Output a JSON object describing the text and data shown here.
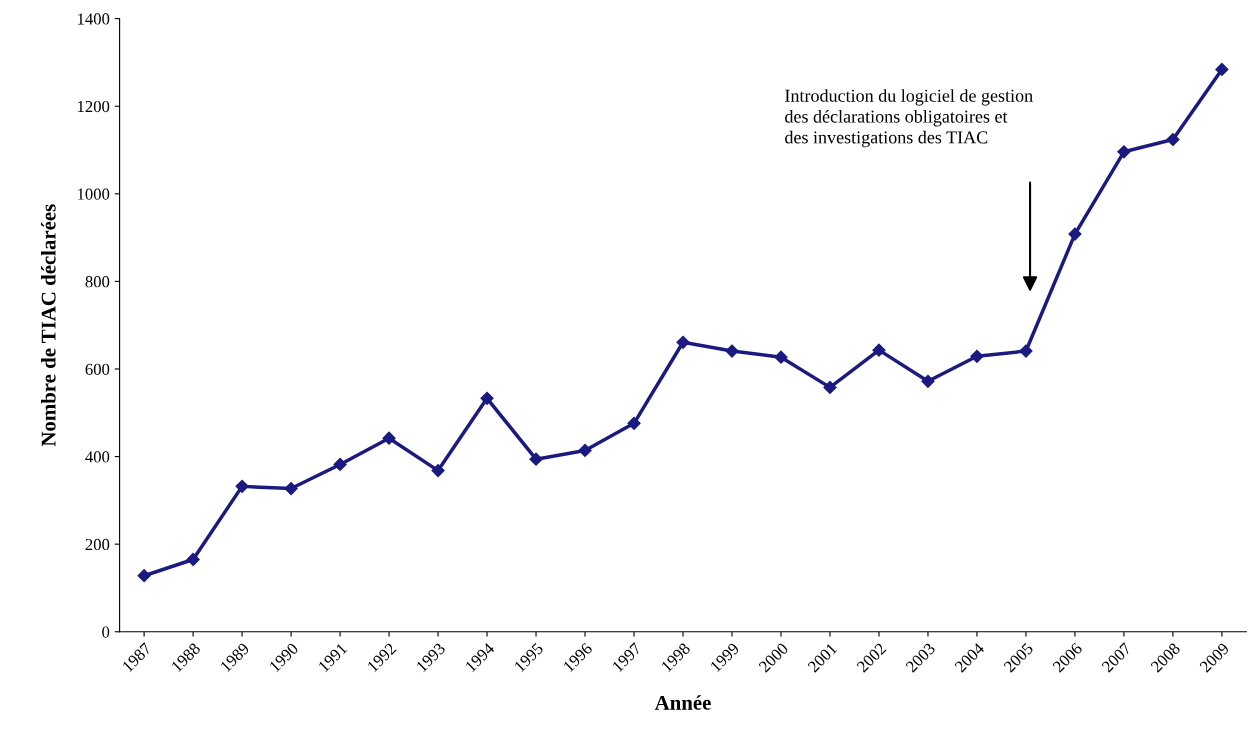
{
  "chart_data": {
    "type": "line",
    "xlabel": "Année",
    "ylabel": "Nombre de TIAC déclarées",
    "categories": [
      "1987",
      "1988",
      "1989",
      "1990",
      "1991",
      "1992",
      "1993",
      "1994",
      "1995",
      "1996",
      "1997",
      "1998",
      "1999",
      "2000",
      "2001",
      "2002",
      "2003",
      "2004",
      "2005",
      "2006",
      "2007",
      "2008",
      "2009"
    ],
    "series": [
      {
        "color": "#1a1a80",
        "values": [
          128,
          165,
          332,
          327,
          382,
          442,
          368,
          533,
          394,
          414,
          476,
          661,
          641,
          627,
          558,
          643,
          572,
          629,
          641,
          908,
          1096,
          1124,
          1284
        ]
      }
    ],
    "ylim": [
      0,
      1400
    ],
    "yticks": [
      0,
      200,
      400,
      600,
      800,
      1000,
      1200,
      1400
    ],
    "marker": "diamond",
    "line_style": "solid",
    "grid": false,
    "annotations": [
      "Introduction du logiciel de gestion\ndes déclarations obligatoires et\ndes investigations des TIAC"
    ]
  }
}
